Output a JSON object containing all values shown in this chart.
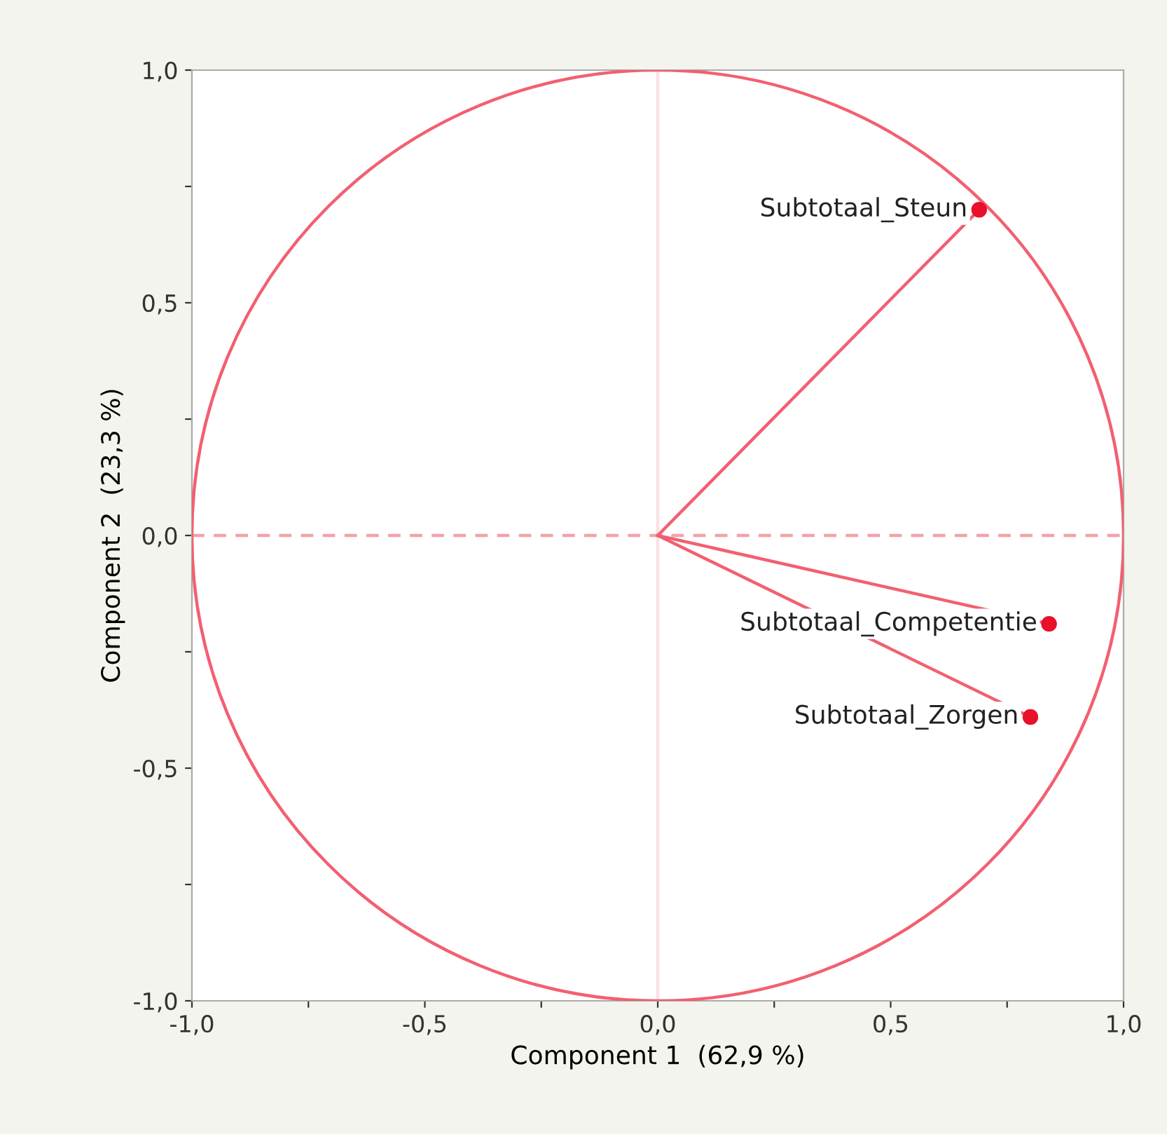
{
  "chart_data": {
    "type": "scatter",
    "xlabel": "Component 1  (62,9 %)",
    "ylabel": "Component 2  (23,3 %)",
    "xlim": [
      -1.0,
      1.0
    ],
    "ylim": [
      -1.0,
      1.0
    ],
    "xticks": [
      {
        "value": -1.0,
        "label": "-1,0"
      },
      {
        "value": -0.75,
        "label": null
      },
      {
        "value": -0.5,
        "label": "-0,5"
      },
      {
        "value": -0.25,
        "label": null
      },
      {
        "value": 0.0,
        "label": "0,0"
      },
      {
        "value": 0.25,
        "label": null
      },
      {
        "value": 0.5,
        "label": "0,5"
      },
      {
        "value": 0.75,
        "label": null
      },
      {
        "value": 1.0,
        "label": "1,0"
      }
    ],
    "yticks": [
      {
        "value": -1.0,
        "label": "-1,0"
      },
      {
        "value": -0.75,
        "label": null
      },
      {
        "value": -0.5,
        "label": "-0,5"
      },
      {
        "value": -0.25,
        "label": null
      },
      {
        "value": 0.0,
        "label": "0,0"
      },
      {
        "value": 0.25,
        "label": null
      },
      {
        "value": 0.5,
        "label": "0,5"
      },
      {
        "value": 0.75,
        "label": null
      },
      {
        "value": 1.0,
        "label": "1,0"
      }
    ],
    "grid": false,
    "legend": false,
    "ref_lines": [
      {
        "axis": "y",
        "value": 0,
        "color": "#f4a0a8",
        "line_style": "dashed"
      },
      {
        "axis": "x",
        "value": 0,
        "color": "#fbe0e3",
        "line_style": "solid"
      }
    ],
    "series": [
      {
        "type": "line",
        "color": "#f26070",
        "line_style": "solid",
        "x": [
          0,
          0.69
        ],
        "values": [
          0,
          0.7
        ]
      },
      {
        "type": "line",
        "color": "#f26070",
        "line_style": "solid",
        "x": [
          0,
          0.84
        ],
        "values": [
          0,
          -0.19
        ]
      },
      {
        "type": "line",
        "color": "#f26070",
        "line_style": "solid",
        "x": [
          0,
          0.8
        ],
        "values": [
          0,
          -0.39
        ]
      },
      {
        "color": "#e8102a",
        "marker": "circle",
        "x": [
          0.69,
          0.84,
          0.8
        ],
        "values": [
          0.7,
          -0.19,
          -0.39
        ]
      }
    ],
    "annotations": [
      {
        "text": "Subtotaal_Steun",
        "x": 0.69,
        "y": 0.7
      },
      {
        "text": "Subtotaal_Competentie",
        "x": 0.84,
        "y": -0.19
      },
      {
        "text": "Subtotaal_Zorgen",
        "x": 0.8,
        "y": -0.39
      }
    ]
  }
}
